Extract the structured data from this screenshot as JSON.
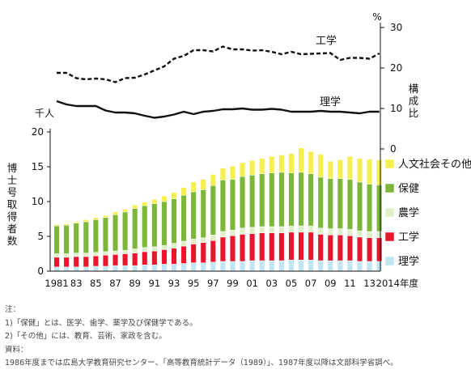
{
  "chart_data": {
    "type": "bar",
    "x": [
      1981,
      1982,
      1983,
      1984,
      1985,
      1986,
      1987,
      1988,
      1989,
      1990,
      1991,
      1992,
      1993,
      1994,
      1995,
      1996,
      1997,
      1998,
      1999,
      2000,
      2001,
      2002,
      2003,
      2004,
      2005,
      2006,
      2007,
      2008,
      2009,
      2010,
      2011,
      2012,
      2013,
      2014
    ],
    "tick_labels": [
      "1981",
      "83",
      "85",
      "87",
      "89",
      "91",
      "93",
      "95",
      "97",
      "99",
      "01",
      "03",
      "05",
      "07",
      "09",
      "11",
      "13",
      "2014年度"
    ],
    "ylabel": "博士号取得者数",
    "y_unit": "千人",
    "ylim": [
      0,
      20
    ],
    "yticks": [
      0,
      5,
      10,
      15,
      20
    ],
    "y2label": "構成比",
    "y2_unit": "%",
    "y2lim": [
      0,
      30
    ],
    "y2ticks": [
      0,
      10,
      20,
      30
    ],
    "legend_position": "right",
    "grid": false,
    "series": [
      {
        "name": "理学",
        "color": "#bfe6f2",
        "stack": true,
        "values": [
          0.6,
          0.6,
          0.6,
          0.6,
          0.7,
          0.7,
          0.8,
          0.8,
          0.8,
          0.9,
          0.9,
          1.0,
          1.0,
          1.1,
          1.2,
          1.2,
          1.3,
          1.4,
          1.4,
          1.4,
          1.5,
          1.5,
          1.5,
          1.5,
          1.6,
          1.6,
          1.6,
          1.5,
          1.5,
          1.5,
          1.5,
          1.4,
          1.4,
          1.4
        ]
      },
      {
        "name": "工学",
        "color": "#e8162c",
        "stack": true,
        "values": [
          1.4,
          1.4,
          1.5,
          1.5,
          1.5,
          1.6,
          1.6,
          1.7,
          1.8,
          1.9,
          2.0,
          2.1,
          2.3,
          2.5,
          2.7,
          2.9,
          3.1,
          3.5,
          3.7,
          3.9,
          3.9,
          4.0,
          4.0,
          4.0,
          4.0,
          4.0,
          4.0,
          3.8,
          3.7,
          3.7,
          3.6,
          3.5,
          3.4,
          3.4
        ]
      },
      {
        "name": "農学",
        "color": "#dff0c8",
        "stack": true,
        "values": [
          0.5,
          0.5,
          0.5,
          0.5,
          0.5,
          0.5,
          0.5,
          0.5,
          0.6,
          0.6,
          0.6,
          0.6,
          0.7,
          0.7,
          0.7,
          0.7,
          0.8,
          0.8,
          0.8,
          0.9,
          0.9,
          0.9,
          0.9,
          0.9,
          0.9,
          0.9,
          0.9,
          0.9,
          0.9,
          0.9,
          0.9,
          0.9,
          0.9,
          0.9
        ]
      },
      {
        "name": "保健",
        "color": "#7cb73c",
        "stack": true,
        "values": [
          4.0,
          4.1,
          4.3,
          4.5,
          4.7,
          4.9,
          5.2,
          5.5,
          5.8,
          6.0,
          6.2,
          6.3,
          6.4,
          6.6,
          6.8,
          6.9,
          7.1,
          7.4,
          7.3,
          7.4,
          7.5,
          7.6,
          7.7,
          7.8,
          7.6,
          7.7,
          7.5,
          7.3,
          7.2,
          7.2,
          7.2,
          7.0,
          6.8,
          6.7
        ]
      },
      {
        "name": "人文社会その他",
        "color": "#f6ef52",
        "stack": true,
        "values": [
          0.2,
          0.2,
          0.2,
          0.3,
          0.3,
          0.3,
          0.4,
          0.4,
          0.5,
          0.5,
          0.6,
          0.8,
          0.9,
          1.1,
          1.4,
          1.5,
          1.6,
          1.7,
          1.9,
          2.0,
          2.1,
          2.2,
          2.4,
          2.5,
          2.8,
          3.5,
          3.2,
          3.3,
          2.5,
          2.7,
          3.3,
          3.4,
          3.6,
          3.6
        ]
      },
      {
        "name": "工学",
        "type": "line",
        "axis": "right",
        "dash": true,
        "values": [
          18.8,
          18.8,
          17.5,
          17.2,
          17.4,
          17.2,
          16.5,
          17.5,
          17.6,
          18.4,
          19.4,
          20.4,
          22.3,
          23.0,
          24.4,
          24.4,
          24.1,
          25.3,
          24.6,
          24.6,
          24.3,
          24.4,
          24.0,
          23.4,
          24.0,
          23.4,
          23.5,
          23.6,
          23.7,
          22.0,
          22.5,
          22.5,
          22.3,
          23.6
        ]
      },
      {
        "name": "理学",
        "type": "line",
        "axis": "right",
        "dash": false,
        "values": [
          11.8,
          11.0,
          10.6,
          10.6,
          10.6,
          9.5,
          9.0,
          9.0,
          8.8,
          8.2,
          7.7,
          8.0,
          8.5,
          9.2,
          8.6,
          9.2,
          9.4,
          9.8,
          9.8,
          10.0,
          9.7,
          9.7,
          9.9,
          9.7,
          9.2,
          9.2,
          9.2,
          9.4,
          9.2,
          9.2,
          9.0,
          8.8,
          9.2,
          9.2
        ]
      }
    ]
  },
  "notes": {
    "heading": "注：",
    "line1": "1)「保健」とは、医学、歯学、薬学及び保健学である。",
    "line2": "2)「その他」には、教育、芸術、家政を含む。",
    "source_heading": "資料：",
    "source": "1986年度までは広島大学教育研究センター、「高等教育統計データ（1989）」、1987年度以降は文部科学省調べ。"
  }
}
